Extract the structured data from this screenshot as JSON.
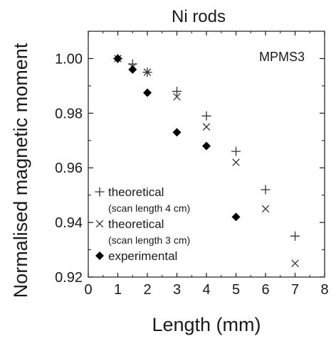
{
  "chart_data": {
    "type": "scatter",
    "title": "Ni rods",
    "annotation": "MPMS3",
    "xlabel": "Length (mm)",
    "ylabel": "Normalised magnetic moment",
    "xlim": [
      0,
      8
    ],
    "ylim": [
      0.92,
      1.01
    ],
    "x_ticks": [
      0,
      1,
      2,
      3,
      4,
      5,
      6,
      7,
      8
    ],
    "y_ticks": [
      0.92,
      0.94,
      0.96,
      0.98,
      1.0
    ],
    "x_tick_labels": [
      "0",
      "1",
      "2",
      "3",
      "4",
      "5",
      "6",
      "7",
      "8"
    ],
    "y_tick_labels": [
      "0.92",
      "0.94",
      "0.96",
      "0.98",
      "1.00"
    ],
    "grid": false,
    "legend_placement": "bottom-left",
    "series": [
      {
        "name": "theoretical",
        "subtitle": "(scan length 4 cm)",
        "marker": "+",
        "color": "#333333",
        "x": [
          1,
          1.5,
          2,
          3,
          4,
          5,
          6,
          7
        ],
        "y": [
          1.0,
          0.998,
          0.995,
          0.988,
          0.979,
          0.966,
          0.952,
          0.935
        ]
      },
      {
        "name": "theoretical",
        "subtitle": "(scan length 3 cm)",
        "marker": "x",
        "color": "#333333",
        "x": [
          1,
          1.5,
          2,
          3,
          4,
          5,
          6,
          7
        ],
        "y": [
          1.0,
          0.997,
          0.995,
          0.986,
          0.975,
          0.962,
          0.945,
          0.925
        ]
      },
      {
        "name": "experimental",
        "marker": "diamond",
        "color": "#000000",
        "x": [
          1,
          1.5,
          2,
          3,
          4,
          5
        ],
        "y": [
          1.0,
          0.996,
          0.9875,
          0.973,
          0.968,
          0.942
        ]
      }
    ]
  }
}
